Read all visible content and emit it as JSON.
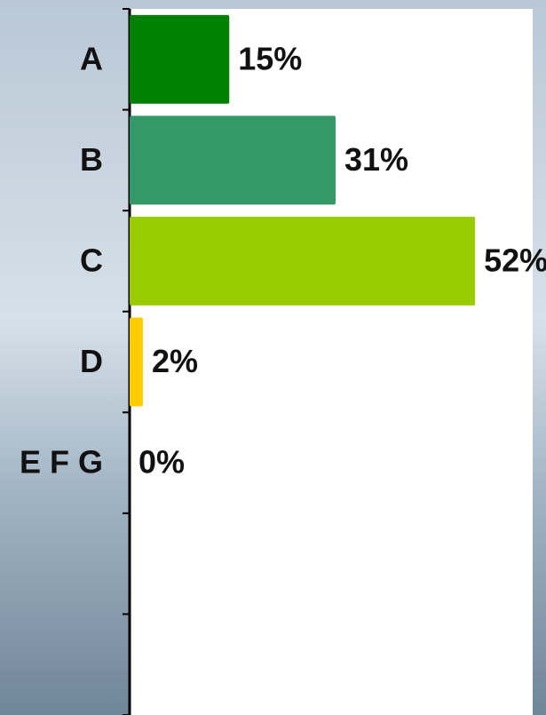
{
  "chart_data": {
    "type": "bar",
    "orientation": "horizontal",
    "categories": [
      "A",
      "B",
      "C",
      "D",
      "E F G",
      null,
      null
    ],
    "values": [
      15,
      31,
      52,
      2,
      0,
      null,
      null
    ],
    "value_labels": [
      "15%",
      "31%",
      "52%",
      "2%",
      "0%",
      null,
      null
    ],
    "colors": [
      "#008000",
      "#339966",
      "#99cc00",
      "#ffcc00",
      "#808080",
      null,
      null
    ],
    "xlim": [
      0,
      60
    ]
  }
}
